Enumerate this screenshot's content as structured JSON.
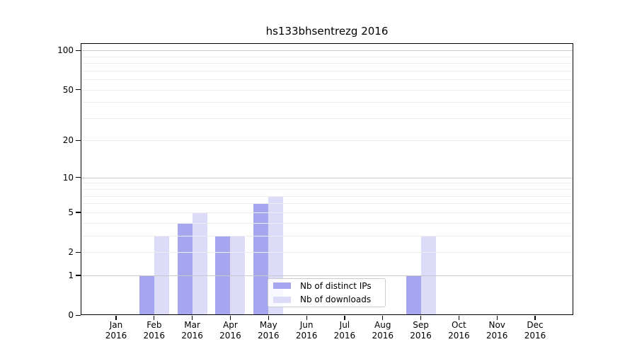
{
  "title": "hs133bhsentrezg 2016",
  "chart_data": {
    "type": "bar",
    "title": "hs133bhsentrezg 2016",
    "year": "2016",
    "categories": [
      "Jan",
      "Feb",
      "Mar",
      "Apr",
      "May",
      "Jun",
      "Jul",
      "Aug",
      "Sep",
      "Oct",
      "Nov",
      "Dec"
    ],
    "series": [
      {
        "name": "Nb of distinct IPs",
        "color": "#a5a5f0",
        "values": [
          0,
          1,
          4,
          3,
          6,
          0,
          0,
          0,
          1,
          0,
          0,
          0
        ]
      },
      {
        "name": "Nb of downloads",
        "color": "#dcdcf8",
        "values": [
          0,
          3,
          5,
          3,
          7,
          0,
          0,
          0,
          3,
          0,
          0,
          0
        ]
      }
    ],
    "yscale": "log1p",
    "ylim": [
      0,
      113
    ],
    "ytick_labels": [
      100,
      50,
      20,
      10,
      5,
      2,
      1,
      0
    ],
    "gridlines": {
      "major": [
        1,
        10,
        100
      ],
      "minor": [
        2,
        3,
        4,
        5,
        6,
        7,
        8,
        9,
        20,
        30,
        40,
        50,
        60,
        70,
        80,
        90
      ]
    },
    "grid": true,
    "legend_position": "lower center",
    "colors": {
      "axis": "#000000",
      "grid_major": "#c9c9c9",
      "grid_minor": "#ededed",
      "legend_border": "#cccccc",
      "background": "#ffffff"
    }
  }
}
